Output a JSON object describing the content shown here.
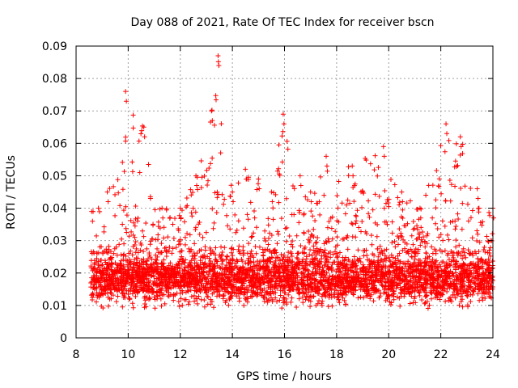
{
  "chart_data": {
    "type": "scatter",
    "title": "Day 088 of 2021, Rate Of TEC Index for receiver bscn",
    "xlabel": "GPS time / hours",
    "ylabel": "ROTI / TECUs",
    "xlim": [
      8,
      24
    ],
    "ylim": [
      0,
      0.09
    ],
    "grid": true,
    "marker": "+",
    "color": "#ff0000",
    "x_ticks": [
      8,
      10,
      12,
      14,
      16,
      18,
      20,
      22,
      24
    ],
    "x_tick_labels": [
      "8",
      "10",
      "12",
      "14",
      "16",
      "18",
      "20",
      "22",
      "24"
    ],
    "y_ticks": [
      0,
      0.01,
      0.02,
      0.03,
      0.04,
      0.05,
      0.06,
      0.07,
      0.08,
      0.09
    ],
    "y_tick_labels": [
      "0",
      "0.01",
      "0.02",
      "0.03",
      "0.04",
      "0.05",
      "0.06",
      "0.07",
      "0.08",
      "0.09"
    ],
    "data_start_hour": 8.55,
    "data_end_hour": 24,
    "typical_range": [
      0.01,
      0.03
    ],
    "envelope": [
      {
        "x": 8.6,
        "upper": 0.039
      },
      {
        "x": 9.2,
        "upper": 0.045
      },
      {
        "x": 9.9,
        "upper": 0.076
      },
      {
        "x": 10.6,
        "upper": 0.065
      },
      {
        "x": 11.3,
        "upper": 0.04
      },
      {
        "x": 12.0,
        "upper": 0.04
      },
      {
        "x": 12.6,
        "upper": 0.05
      },
      {
        "x": 13.2,
        "upper": 0.07
      },
      {
        "x": 13.45,
        "upper": 0.087
      },
      {
        "x": 14.0,
        "upper": 0.045
      },
      {
        "x": 14.5,
        "upper": 0.052
      },
      {
        "x": 15.0,
        "upper": 0.049
      },
      {
        "x": 15.5,
        "upper": 0.045
      },
      {
        "x": 15.95,
        "upper": 0.069
      },
      {
        "x": 16.6,
        "upper": 0.05
      },
      {
        "x": 17.0,
        "upper": 0.045
      },
      {
        "x": 17.6,
        "upper": 0.056
      },
      {
        "x": 18.6,
        "upper": 0.053
      },
      {
        "x": 19.8,
        "upper": 0.059
      },
      {
        "x": 20.5,
        "upper": 0.045
      },
      {
        "x": 21.2,
        "upper": 0.04
      },
      {
        "x": 22.2,
        "upper": 0.066
      },
      {
        "x": 22.75,
        "upper": 0.062
      },
      {
        "x": 23.4,
        "upper": 0.046
      },
      {
        "x": 24.0,
        "upper": 0.04
      }
    ]
  }
}
